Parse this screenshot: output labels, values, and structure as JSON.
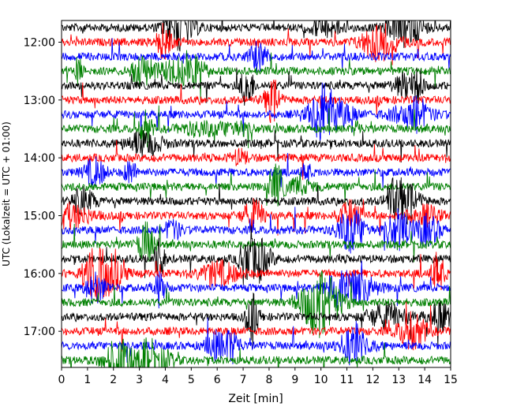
{
  "chart_data": {
    "type": "line",
    "subtype": "helicorder",
    "title": "",
    "xlabel": "Zeit  [min]",
    "ylabel": "UTC (Lokalzeit = UTC + 01:00)",
    "xlim": [
      0,
      15
    ],
    "x_ticks": [
      "0",
      "1",
      "2",
      "3",
      "4",
      "5",
      "6",
      "7",
      "8",
      "9",
      "10",
      "11",
      "12",
      "13",
      "14",
      "15"
    ],
    "y_ticks": [
      "12:00",
      "13:00",
      "14:00",
      "15:00",
      "16:00",
      "17:00"
    ],
    "start_time": "11:45",
    "trace_interval_min": 15,
    "trace_count": 24,
    "colors": [
      "#000000",
      "#ff0000",
      "#0000ff",
      "#008000"
    ],
    "grid": false
  }
}
